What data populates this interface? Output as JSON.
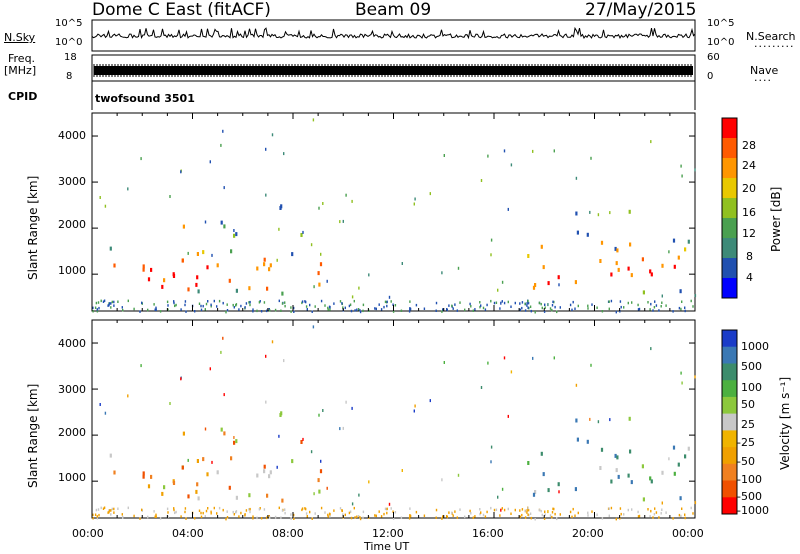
{
  "header": {
    "radar_title": "Dome C East (fitACF)",
    "beam": "Beam 09",
    "date": "27/May/2015"
  },
  "strip_panels": {
    "nsky_label": "N.Sky",
    "nsky_ticks": [
      "10^5",
      "10^0"
    ],
    "nsearch_label": "N.Search",
    "nsearch_ticks": [
      "10^5",
      "10^0"
    ],
    "freq_label_line1": "Freq.",
    "freq_label_line2": "[MHz]",
    "freq_ticks": [
      "18",
      "8"
    ],
    "nave_label": "Nave",
    "nave_ticks": [
      "60",
      "0"
    ],
    "cpid_label": "CPID",
    "cpid_value": "twofsound 3501"
  },
  "chart_data": [
    {
      "type": "heatmap",
      "name": "power",
      "ylabel": "Slant Range [km]",
      "y_ticks": [
        "1000",
        "2000",
        "3000",
        "4000"
      ],
      "ylim": [
        200,
        4500
      ],
      "x_range_hours": [
        0,
        24
      ],
      "colorbar_label": "Power [dB]",
      "colorbar_ticks": [
        "28",
        "24",
        "20",
        "16",
        "12",
        "8",
        "4"
      ],
      "colorbar_colors": [
        "#ff0000",
        "#ff5a00",
        "#ff9600",
        "#e8c800",
        "#90c020",
        "#4aa050",
        "#3d8a78",
        "#2050b0",
        "#0000ff"
      ]
    },
    {
      "type": "heatmap",
      "name": "velocity",
      "ylabel": "Slant Range [km]",
      "y_ticks": [
        "1000",
        "2000",
        "3000",
        "4000"
      ],
      "ylim": [
        200,
        4500
      ],
      "x_range_hours": [
        0,
        24
      ],
      "xlabel": "Time UT",
      "x_ticks": [
        "00:00",
        "04:00",
        "08:00",
        "12:00",
        "16:00",
        "20:00",
        "00:00"
      ],
      "colorbar_label": "Velocity [m s⁻¹]",
      "colorbar_ticks": [
        "1000",
        "500",
        "100",
        "50",
        "25",
        "-25",
        "-50",
        "-100",
        "-500",
        "-1000"
      ],
      "colorbar_colors": [
        "#1a3cc8",
        "#3a78b4",
        "#3c8c6c",
        "#4cb040",
        "#8cc83c",
        "#c8c8c8",
        "#f0b400",
        "#f0a000",
        "#f08020",
        "#f05000",
        "#ff0000"
      ]
    }
  ]
}
